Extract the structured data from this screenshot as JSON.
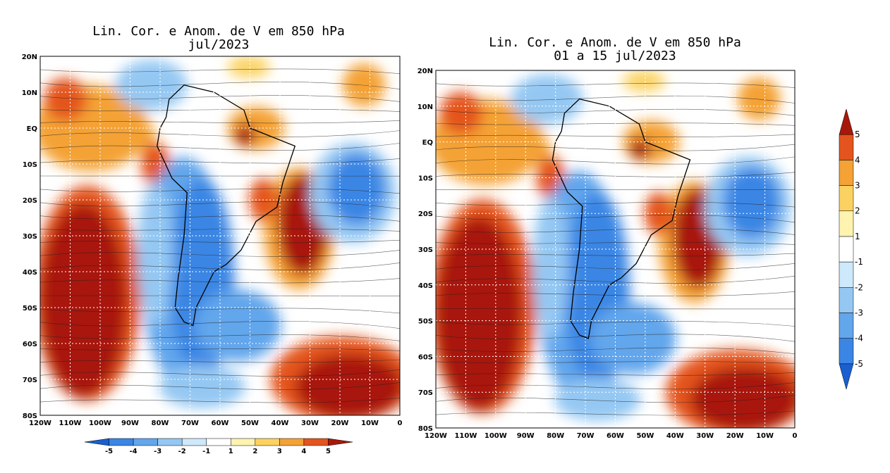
{
  "panels": [
    {
      "title": [
        "Lin. Cor. e Anom. de V em 850 hPa",
        "jul/2023"
      ],
      "xticks": [
        "120W",
        "110W",
        "100W",
        "90W",
        "80W",
        "70W",
        "60W",
        "50W",
        "40W",
        "30W",
        "20W",
        "10W",
        "0"
      ],
      "yticks": [
        "20N",
        "10N",
        "EQ",
        "10S",
        "20S",
        "30S",
        "40S",
        "50S",
        "60S",
        "70S",
        "80S"
      ]
    },
    {
      "title": [
        "Lin. Cor. e Anom. de V em 850 hPa",
        "01 a 15 jul/2023"
      ],
      "xticks": [
        "120W",
        "110W",
        "100W",
        "90W",
        "80W",
        "70W",
        "60W",
        "50W",
        "40W",
        "30W",
        "20W",
        "10W",
        "0"
      ],
      "yticks": [
        "20N",
        "10N",
        "EQ",
        "10S",
        "20S",
        "30S",
        "40S",
        "50S",
        "60S",
        "70S",
        "80S"
      ]
    }
  ],
  "colorbar": {
    "labels": [
      -5,
      -4,
      -3,
      -2,
      -1,
      1,
      2,
      3,
      4,
      5
    ],
    "colors": [
      "#1a5fd0",
      "#3b86e4",
      "#62a6ec",
      "#94c8f3",
      "#cde9fb",
      "#ffffff",
      "#fff3b0",
      "#fbd261",
      "#f4a236",
      "#e4541e",
      "#a8180a"
    ]
  }
}
